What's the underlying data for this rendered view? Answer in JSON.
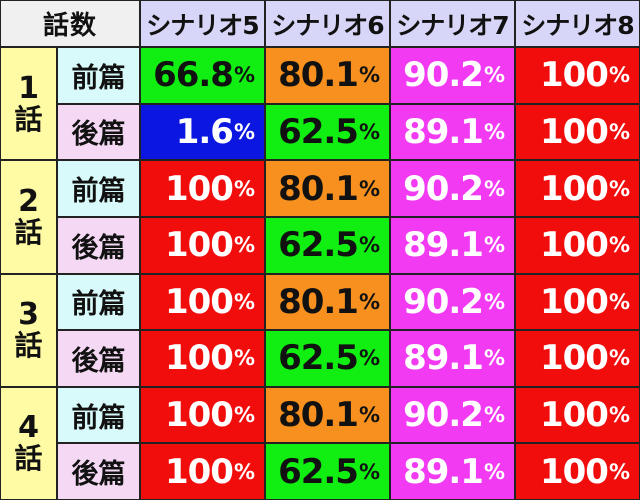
{
  "header": {
    "count_label": "話数",
    "scenarios": [
      "シナリオ5",
      "シナリオ6",
      "シナリオ7",
      "シナリオ8"
    ]
  },
  "percent_sign": "%",
  "colors": {
    "green": "#11ee11",
    "blue": "#0b16e0",
    "red": "#f20d0d",
    "orange": "#f7901e",
    "magenta": "#f13af1",
    "episode_bg": "#fffaa4",
    "zenpen_bg": "#d8fafa",
    "kouhen_bg": "#f4d8f4",
    "header_bg": "#d8d6f8"
  },
  "episodes": [
    {
      "number": "1",
      "suffix": "話",
      "parts": [
        {
          "label": "前篇",
          "values": [
            {
              "value": "66.8",
              "color": "green"
            },
            {
              "value": "80.1",
              "color": "orange"
            },
            {
              "value": "90.2",
              "color": "magenta"
            },
            {
              "value": "100",
              "color": "red"
            }
          ]
        },
        {
          "label": "後篇",
          "values": [
            {
              "value": "1.6",
              "color": "blue"
            },
            {
              "value": "62.5",
              "color": "green"
            },
            {
              "value": "89.1",
              "color": "magenta"
            },
            {
              "value": "100",
              "color": "red"
            }
          ]
        }
      ]
    },
    {
      "number": "2",
      "suffix": "話",
      "parts": [
        {
          "label": "前篇",
          "values": [
            {
              "value": "100",
              "color": "red"
            },
            {
              "value": "80.1",
              "color": "orange"
            },
            {
              "value": "90.2",
              "color": "magenta"
            },
            {
              "value": "100",
              "color": "red"
            }
          ]
        },
        {
          "label": "後篇",
          "values": [
            {
              "value": "100",
              "color": "red"
            },
            {
              "value": "62.5",
              "color": "green"
            },
            {
              "value": "89.1",
              "color": "magenta"
            },
            {
              "value": "100",
              "color": "red"
            }
          ]
        }
      ]
    },
    {
      "number": "3",
      "suffix": "話",
      "parts": [
        {
          "label": "前篇",
          "values": [
            {
              "value": "100",
              "color": "red"
            },
            {
              "value": "80.1",
              "color": "orange"
            },
            {
              "value": "90.2",
              "color": "magenta"
            },
            {
              "value": "100",
              "color": "red"
            }
          ]
        },
        {
          "label": "後篇",
          "values": [
            {
              "value": "100",
              "color": "red"
            },
            {
              "value": "62.5",
              "color": "green"
            },
            {
              "value": "89.1",
              "color": "magenta"
            },
            {
              "value": "100",
              "color": "red"
            }
          ]
        }
      ]
    },
    {
      "number": "4",
      "suffix": "話",
      "parts": [
        {
          "label": "前篇",
          "values": [
            {
              "value": "100",
              "color": "red"
            },
            {
              "value": "80.1",
              "color": "orange"
            },
            {
              "value": "90.2",
              "color": "magenta"
            },
            {
              "value": "100",
              "color": "red"
            }
          ]
        },
        {
          "label": "後篇",
          "values": [
            {
              "value": "100",
              "color": "red"
            },
            {
              "value": "62.5",
              "color": "green"
            },
            {
              "value": "89.1",
              "color": "magenta"
            },
            {
              "value": "100",
              "color": "red"
            }
          ]
        }
      ]
    }
  ]
}
